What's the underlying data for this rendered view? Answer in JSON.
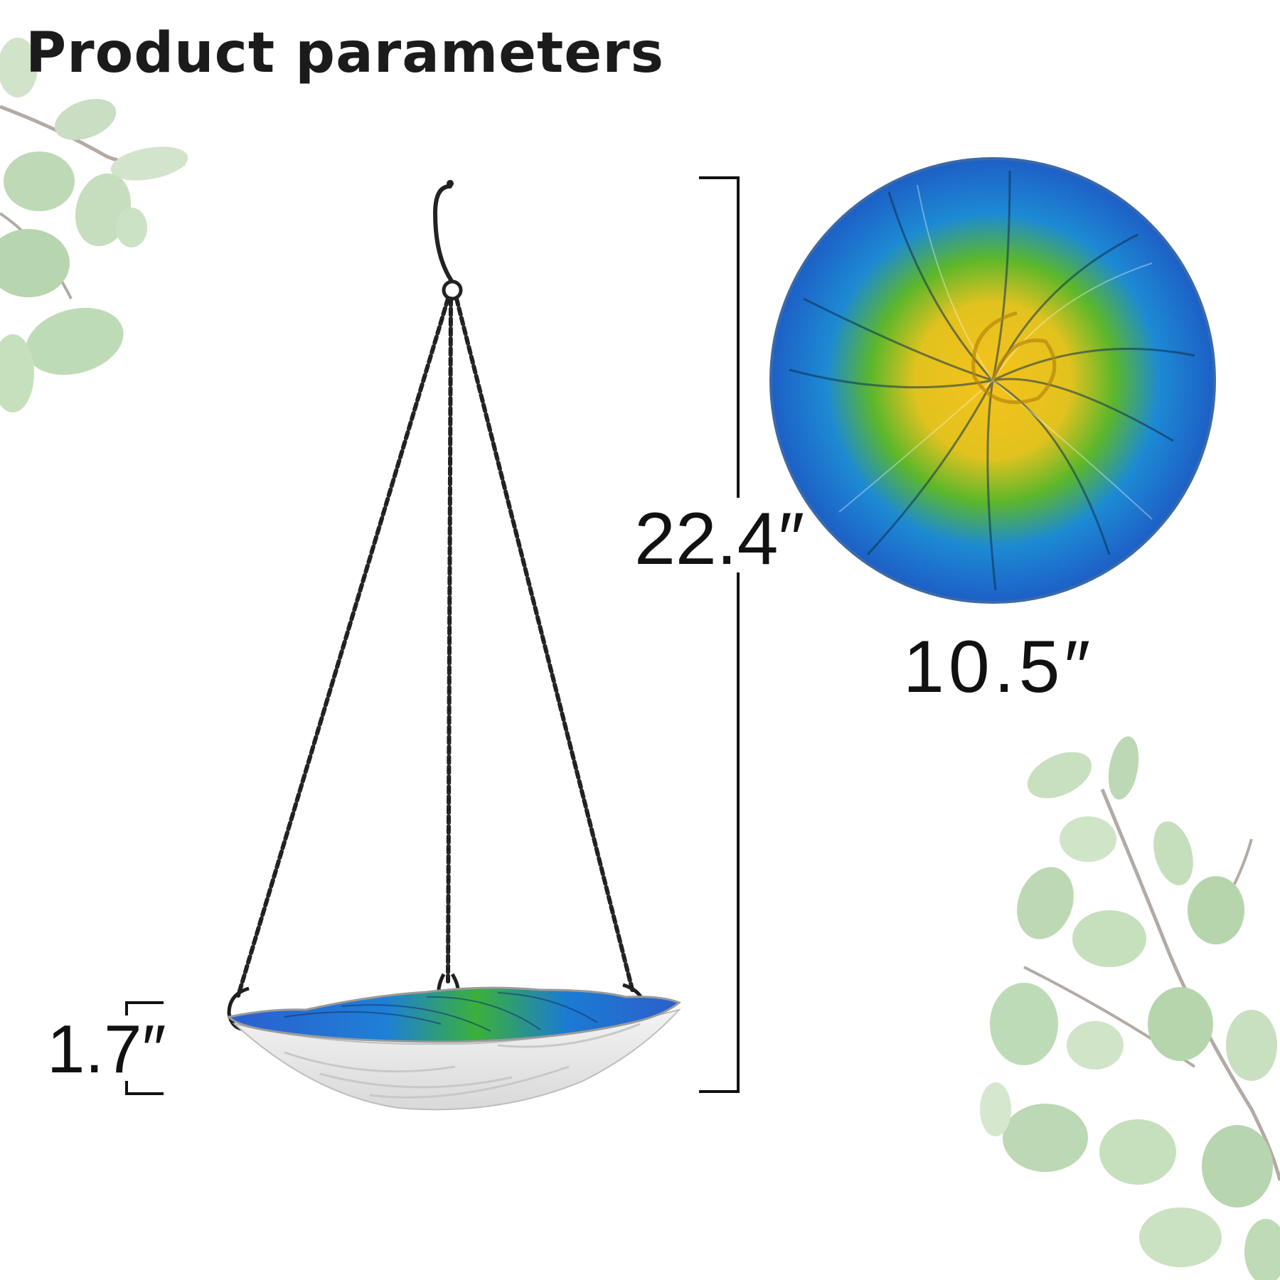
{
  "header": {
    "title": "Product parameters"
  },
  "dimensions": {
    "height": "22.4″",
    "diameter": "10.5″",
    "depth": "1.7″"
  },
  "colors": {
    "title": "#1b1b1b",
    "bowl_blue": "#1e7fd0",
    "bowl_green": "#3fb12f",
    "bowl_yellow": "#f2c81d",
    "chain": "#1f1f1f",
    "leaf": "#a9cf9f"
  }
}
